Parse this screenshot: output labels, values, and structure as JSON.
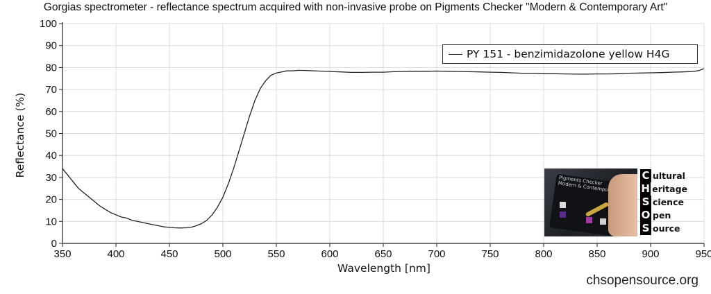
{
  "chart_data": {
    "type": "line",
    "title": "Gorgias spectrometer - reflectance spectrum acquired with non-invasive probe on Pigments Checker \"Modern & Contemporary Art\"",
    "xlabel": "Wavelength [nm]",
    "ylabel": "Reflectance (%)",
    "xlim": [
      350,
      950
    ],
    "ylim": [
      0,
      100
    ],
    "x_ticks": [
      350,
      400,
      450,
      500,
      550,
      600,
      650,
      700,
      750,
      800,
      850,
      900,
      950
    ],
    "y_ticks": [
      0,
      10,
      20,
      30,
      40,
      50,
      60,
      70,
      80,
      90,
      100
    ],
    "grid": true,
    "legend_position": "top-right",
    "series": [
      {
        "name": "PY 151 - benzimidazolone yellow H4G",
        "color": "#222222",
        "x": [
          350,
          355,
          360,
          365,
          370,
          375,
          380,
          385,
          390,
          395,
          400,
          405,
          410,
          415,
          420,
          425,
          430,
          435,
          440,
          445,
          450,
          455,
          460,
          465,
          470,
          475,
          480,
          485,
          490,
          495,
          500,
          505,
          510,
          515,
          520,
          525,
          530,
          535,
          540,
          545,
          550,
          555,
          560,
          565,
          570,
          575,
          580,
          590,
          600,
          610,
          620,
          630,
          640,
          650,
          660,
          670,
          680,
          690,
          700,
          710,
          720,
          730,
          740,
          750,
          760,
          770,
          780,
          790,
          800,
          810,
          820,
          830,
          840,
          850,
          860,
          870,
          880,
          890,
          900,
          910,
          920,
          930,
          940,
          945,
          950
        ],
        "y": [
          34,
          31,
          28,
          25,
          23,
          21,
          19,
          17,
          15.5,
          14,
          13,
          12,
          11.5,
          10.5,
          10,
          9.5,
          9,
          8.5,
          8,
          7.5,
          7.3,
          7.1,
          7,
          7.1,
          7.3,
          8,
          9,
          10.5,
          13,
          16.5,
          21,
          27,
          34,
          42,
          50,
          58,
          65,
          70.5,
          74,
          76.5,
          77.5,
          78,
          78.5,
          78.5,
          78.7,
          78.7,
          78.6,
          78.4,
          78.2,
          78,
          77.8,
          77.8,
          77.9,
          77.9,
          78.1,
          78.2,
          78.3,
          78.3,
          78.4,
          78.3,
          78.2,
          78.1,
          78,
          77.9,
          77.8,
          77.6,
          77.4,
          77.4,
          77.2,
          77.2,
          77.1,
          77,
          77,
          77.1,
          77.1,
          77.2,
          77.4,
          77.5,
          77.6,
          77.7,
          77.9,
          78,
          78.2,
          78.6,
          79.5
        ]
      }
    ]
  },
  "logo": {
    "photo_caption": "Pigments Checker",
    "photo_subcaption": "Modern & Contemporary Art",
    "letters": [
      "C",
      "H",
      "S",
      "O",
      "S"
    ],
    "words": [
      "ultural",
      "eritage",
      "cience",
      "pen",
      "ource"
    ]
  },
  "footer": {
    "website": "chsopensource.org"
  }
}
